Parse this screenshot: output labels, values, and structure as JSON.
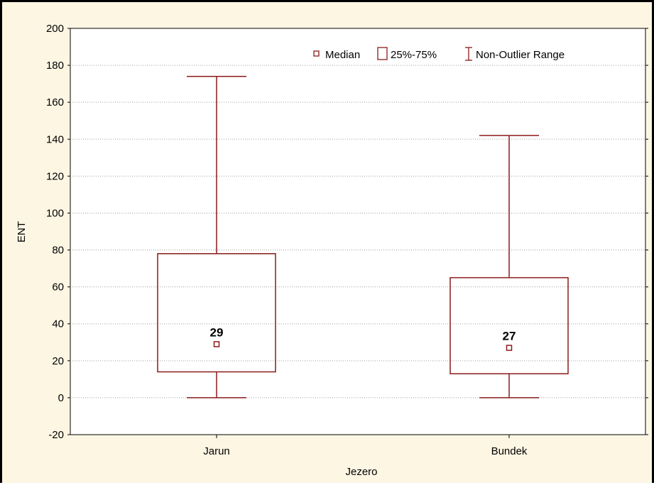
{
  "colors": {
    "background": "#fdf6e3",
    "plot_background": "#ffffff",
    "series": "#8b1a1a",
    "grid": "#a0a0a0"
  },
  "chart_data": {
    "type": "boxplot",
    "title": "",
    "xlabel": "Jezero",
    "ylabel": "ENT",
    "ylim": [
      -20,
      200
    ],
    "yticks": [
      -20,
      0,
      20,
      40,
      60,
      80,
      100,
      120,
      140,
      160,
      180,
      200
    ],
    "grid": true,
    "legend": {
      "position": "top-right",
      "entries": [
        {
          "symbol": "median-marker",
          "label": "Median"
        },
        {
          "symbol": "box",
          "label": "25%-75%"
        },
        {
          "symbol": "whisker",
          "label": "Non-Outlier Range"
        }
      ]
    },
    "categories": [
      "Jarun",
      "Bundek"
    ],
    "boxes": [
      {
        "category": "Jarun",
        "min": 0,
        "q1": 14,
        "median": 29,
        "q3": 78,
        "max": 174,
        "median_label": "29"
      },
      {
        "category": "Bundek",
        "min": 0,
        "q1": 13,
        "median": 27,
        "q3": 65,
        "max": 142,
        "median_label": "27"
      }
    ]
  }
}
